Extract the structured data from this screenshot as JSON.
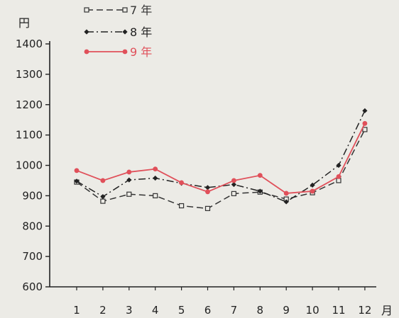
{
  "chart_data": {
    "type": "line",
    "ylabel": "円",
    "xlabel": "月",
    "categories": [
      "1",
      "2",
      "3",
      "4",
      "5",
      "6",
      "7",
      "8",
      "9",
      "10",
      "11",
      "12"
    ],
    "ylim": [
      600,
      1400
    ],
    "yticks": [
      "600",
      "700",
      "800",
      "900",
      "1000",
      "1100",
      "1200",
      "1300",
      "1400"
    ],
    "grid": false,
    "legend_position": "top-left",
    "series": [
      {
        "name": "7 年",
        "color": "#333333",
        "marker": "square",
        "style": "dashed",
        "values": [
          945,
          882,
          905,
          900,
          867,
          858,
          907,
          912,
          889,
          910,
          950,
          1118
        ]
      },
      {
        "name": "8 年",
        "color": "#222222",
        "marker": "diamond",
        "style": "dashdot",
        "values": [
          948,
          897,
          952,
          958,
          941,
          927,
          937,
          915,
          880,
          935,
          1000,
          1180
        ]
      },
      {
        "name": "9 年",
        "color": "#e0505a",
        "marker": "circle",
        "style": "solid",
        "values": [
          983,
          950,
          978,
          988,
          943,
          913,
          950,
          967,
          908,
          915,
          963,
          1138
        ]
      }
    ]
  }
}
